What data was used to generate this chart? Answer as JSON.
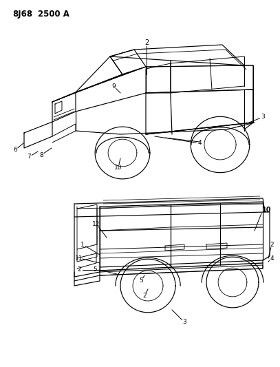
{
  "background_color": "#ffffff",
  "line_color": "#000000",
  "fig_width": 4.07,
  "fig_height": 5.33,
  "dpi": 100,
  "header": "8J68  2500 A",
  "header_fontsize": 8.5,
  "header_fontweight": "bold"
}
